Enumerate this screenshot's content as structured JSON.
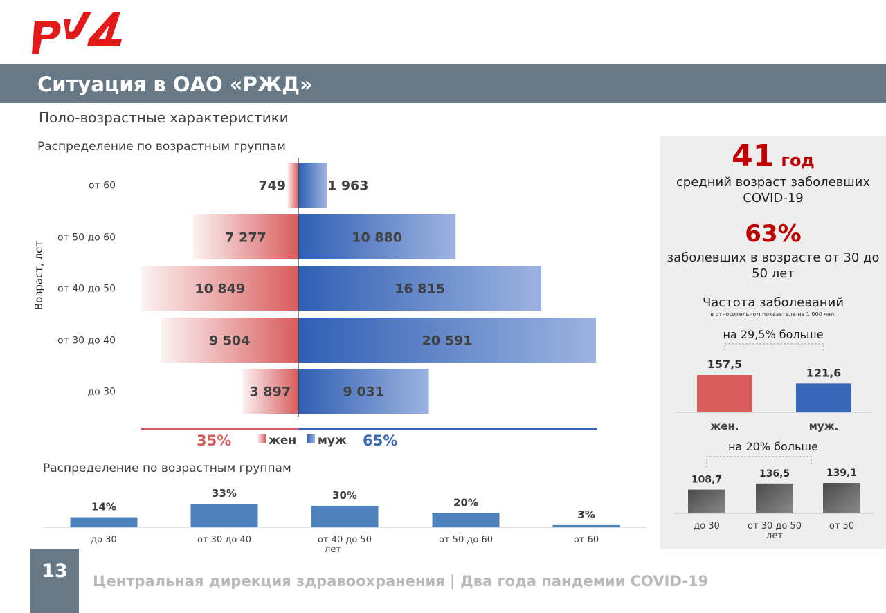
{
  "header": {
    "logo_text": "РЖД",
    "title": "Ситуация в ОАО «РЖД»",
    "subtitle": "Поло-возрастные характеристики"
  },
  "colors": {
    "header_bar": "#677887",
    "female": "#d85c5c",
    "male": "#3a68b8",
    "accent_red": "#c00000",
    "column": "#4f81bd",
    "gray_bar": "#6b6b6b"
  },
  "pyramid_section_label": "Распределение по возрастным группам",
  "bar_section_label": "Распределение по возрастным группам",
  "legend": {
    "female_pct": "35%",
    "female_label": "жен",
    "male_label": "муж",
    "male_pct": "65%"
  },
  "stats": {
    "age_value": "41",
    "age_unit": "год",
    "age_desc": "средний возраст заболевших COVID-19",
    "pct_value": "63%",
    "pct_desc": "заболевших в возрасте от 30 до 50 лет",
    "freq_title": "Частота заболеваний",
    "freq_note": "в относительном показателе на 1 000 чел.",
    "gender_note": "на 29,5% больше",
    "age_note": "на 20% больше"
  },
  "footer": {
    "page_number": "13",
    "text": "Центральная дирекция здравоохранения | Два года пандемии COVID-19"
  },
  "chart_data": [
    {
      "type": "bar",
      "orientation": "horizontal-pyramid",
      "ylabel": "Возраст, лет",
      "categories": [
        "от 60",
        "от 50 до 60",
        "от 40 до 50",
        "от 30 до 40",
        "до 30"
      ],
      "series": [
        {
          "name": "жен",
          "values": [
            749,
            7277,
            10849,
            9504,
            3897
          ],
          "labels": [
            "749",
            "7 277",
            "10 849",
            "9 504",
            "3 897"
          ]
        },
        {
          "name": "муж",
          "values": [
            1963,
            10880,
            16815,
            20591,
            9031
          ],
          "labels": [
            "1 963",
            "10 880",
            "16 815",
            "20 591",
            "9 031"
          ]
        }
      ]
    },
    {
      "type": "bar",
      "categories": [
        "до 30",
        "от 30 до 40",
        "от 40 до 50 лет",
        "от 50 до 60",
        "от 60"
      ],
      "values": [
        14,
        33,
        30,
        20,
        3
      ],
      "labels": [
        "14%",
        "33%",
        "30%",
        "20%",
        "3%"
      ]
    },
    {
      "type": "bar",
      "categories": [
        "жен.",
        "муж."
      ],
      "values": [
        157.5,
        121.6
      ],
      "labels": [
        "157,5",
        "121,6"
      ]
    },
    {
      "type": "bar",
      "categories": [
        "до 30",
        "от 30 до 50 лет",
        "от 50"
      ],
      "values": [
        108.7,
        136.5,
        139.1
      ],
      "labels": [
        "108,7",
        "136,5",
        "139,1"
      ]
    }
  ]
}
